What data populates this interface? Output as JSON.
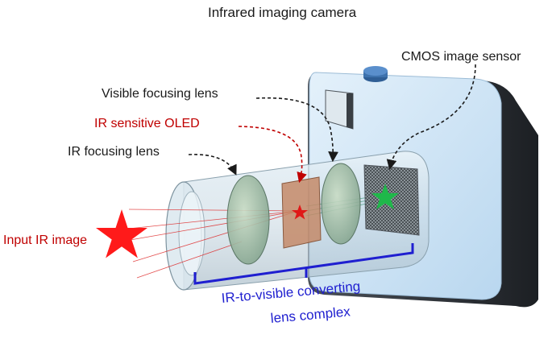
{
  "title": "Infrared imaging camera",
  "labels": {
    "cmos": "CMOS image sensor",
    "visible_lens": "Visible focusing lens",
    "ir_oled": "IR sensitive OLED",
    "ir_lens": "IR focusing lens",
    "input": "Input IR image",
    "complex_line1": "IR-to-visible converting",
    "complex_line2": "lens complex"
  },
  "colors": {
    "black_text": "#1a1a1a",
    "red_text": "#c00000",
    "blue_text": "#1f1fd0",
    "star": "#ff1a1a",
    "sensor_star": "#1fb84a",
    "camera_body": "#cfe4f4",
    "camera_side": "#2a2e33"
  }
}
